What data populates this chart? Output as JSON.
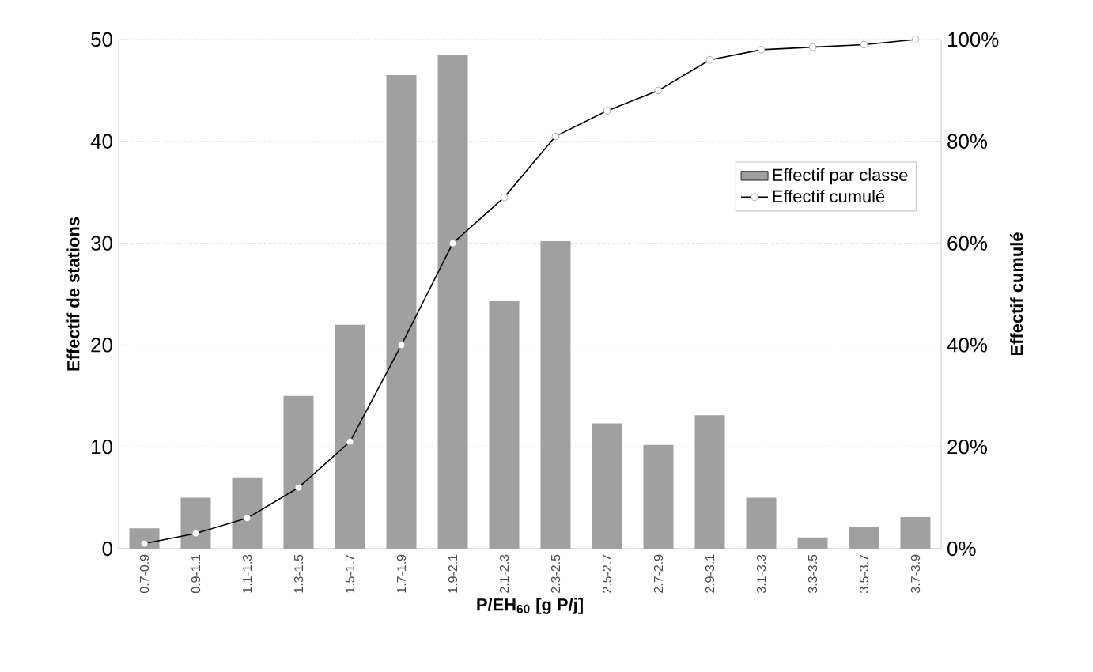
{
  "chart_data": {
    "type": "bar",
    "xlabel": "P/EH$_{60}$ [g P/j]",
    "ylabel": "Effectif de stations",
    "y2label": "Effectif cumulé",
    "categories": [
      "0.7-0.9",
      "0.9-1.1",
      "1.1-1.3",
      "1.3-1.5",
      "1.5-1.7",
      "1.7-1.9",
      "1.9-2.1",
      "2.1-2.3",
      "2.3-2.5",
      "2.5-2.7",
      "2.7-2.9",
      "2.9-3.1",
      "3.1-3.3",
      "3.3-3.5",
      "3.5-3.7",
      "3.7-3.9"
    ],
    "series": [
      {
        "name": "Effectif par classe",
        "color": "#a0a0a0",
        "values": [
          2,
          5,
          7,
          15,
          22,
          46.5,
          48.5,
          24.3,
          30.2,
          12.3,
          10.2,
          13.1,
          5,
          1.1,
          2.1,
          3.1
        ]
      },
      {
        "name": "Effectif cumulé",
        "type": "line",
        "axis": "y2",
        "color": "#000000",
        "marker": "circle",
        "values": [
          1,
          3,
          6,
          12,
          21,
          40,
          60,
          69,
          81,
          86,
          90,
          96,
          98,
          98.5,
          99,
          100
        ]
      }
    ],
    "ylim": [
      0,
      50
    ],
    "yticks": [
      0,
      10,
      20,
      30,
      40,
      50
    ],
    "y2lim": [
      0,
      100
    ],
    "y2ticks": [
      {
        "value": 0,
        "label": "0%"
      },
      {
        "value": 20,
        "label": "20%"
      },
      {
        "value": 40,
        "label": "40%"
      },
      {
        "value": 60,
        "label": "60%"
      },
      {
        "value": 80,
        "label": "80%"
      },
      {
        "value": 100,
        "label": "100%"
      }
    ],
    "grid": "y",
    "legend": "top right"
  }
}
